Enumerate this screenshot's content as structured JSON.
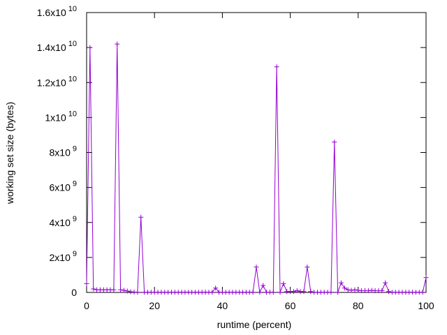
{
  "chart_data": {
    "type": "line",
    "title": "",
    "xlabel": "runtime (percent)",
    "ylabel": "working set size (bytes)",
    "xlim": [
      0,
      100
    ],
    "ylim": [
      0,
      16000000000
    ],
    "grid": false,
    "legend": "none",
    "series_color": "#9400d3",
    "marker": "plus",
    "x_ticks": [
      {
        "value": 0,
        "label": "0"
      },
      {
        "value": 20,
        "label": "20"
      },
      {
        "value": 40,
        "label": "40"
      },
      {
        "value": 60,
        "label": "60"
      },
      {
        "value": 80,
        "label": "80"
      },
      {
        "value": 100,
        "label": "100"
      }
    ],
    "y_ticks": [
      {
        "value": 0,
        "mantissa": "0",
        "exponent": ""
      },
      {
        "value": 2000000000,
        "mantissa": "2x10",
        "exponent": "9"
      },
      {
        "value": 4000000000,
        "mantissa": "4x10",
        "exponent": "9"
      },
      {
        "value": 6000000000,
        "mantissa": "6x10",
        "exponent": "9"
      },
      {
        "value": 8000000000,
        "mantissa": "8x10",
        "exponent": "9"
      },
      {
        "value": 10000000000,
        "mantissa": "1x10",
        "exponent": "10"
      },
      {
        "value": 12000000000,
        "mantissa": "1.2x10",
        "exponent": "10"
      },
      {
        "value": 14000000000,
        "mantissa": "1.4x10",
        "exponent": "10"
      },
      {
        "value": 16000000000,
        "mantissa": "1.6x10",
        "exponent": "10"
      }
    ],
    "series": [
      {
        "x": [
          0,
          1,
          2,
          3,
          4,
          5,
          6,
          7,
          8,
          9,
          10,
          11,
          12,
          13,
          14,
          15,
          16,
          17,
          18,
          19,
          20,
          21,
          22,
          23,
          24,
          25,
          26,
          27,
          28,
          29,
          30,
          31,
          32,
          33,
          34,
          35,
          36,
          37,
          38,
          39,
          40,
          41,
          42,
          43,
          44,
          45,
          46,
          47,
          48,
          49,
          50,
          51,
          52,
          53,
          54,
          55,
          56,
          57,
          58,
          59,
          60,
          61,
          62,
          63,
          64,
          65,
          66,
          67,
          68,
          69,
          70,
          71,
          72,
          73,
          74,
          75,
          76,
          77,
          78,
          79,
          80,
          81,
          82,
          83,
          84,
          85,
          86,
          87,
          88,
          89,
          90,
          91,
          92,
          93,
          94,
          95,
          96,
          97,
          98,
          99,
          100
        ],
        "y": [
          500000000,
          14000000000,
          200000000,
          150000000,
          150000000,
          150000000,
          150000000,
          150000000,
          150000000,
          14200000000,
          150000000,
          120000000,
          80000000,
          40000000,
          20000000,
          10000000,
          4300000000,
          10000000,
          10000000,
          10000000,
          10000000,
          10000000,
          10000000,
          10000000,
          10000000,
          10000000,
          10000000,
          10000000,
          10000000,
          10000000,
          10000000,
          10000000,
          10000000,
          10000000,
          10000000,
          10000000,
          10000000,
          10000000,
          250000000,
          10000000,
          10000000,
          10000000,
          10000000,
          10000000,
          10000000,
          10000000,
          10000000,
          10000000,
          10000000,
          10000000,
          1450000000,
          10000000,
          400000000,
          10000000,
          10000000,
          10000000,
          12900000000,
          10000000,
          500000000,
          50000000,
          50000000,
          50000000,
          100000000,
          50000000,
          50000000,
          1450000000,
          50000000,
          10000000,
          10000000,
          10000000,
          10000000,
          10000000,
          10000000,
          8600000000,
          10000000,
          550000000,
          250000000,
          150000000,
          120000000,
          150000000,
          120000000,
          100000000,
          100000000,
          100000000,
          120000000,
          100000000,
          100000000,
          100000000,
          550000000,
          50000000,
          10000000,
          10000000,
          10000000,
          10000000,
          10000000,
          10000000,
          10000000,
          10000000,
          10000000,
          10000000,
          850000000
        ]
      }
    ]
  }
}
